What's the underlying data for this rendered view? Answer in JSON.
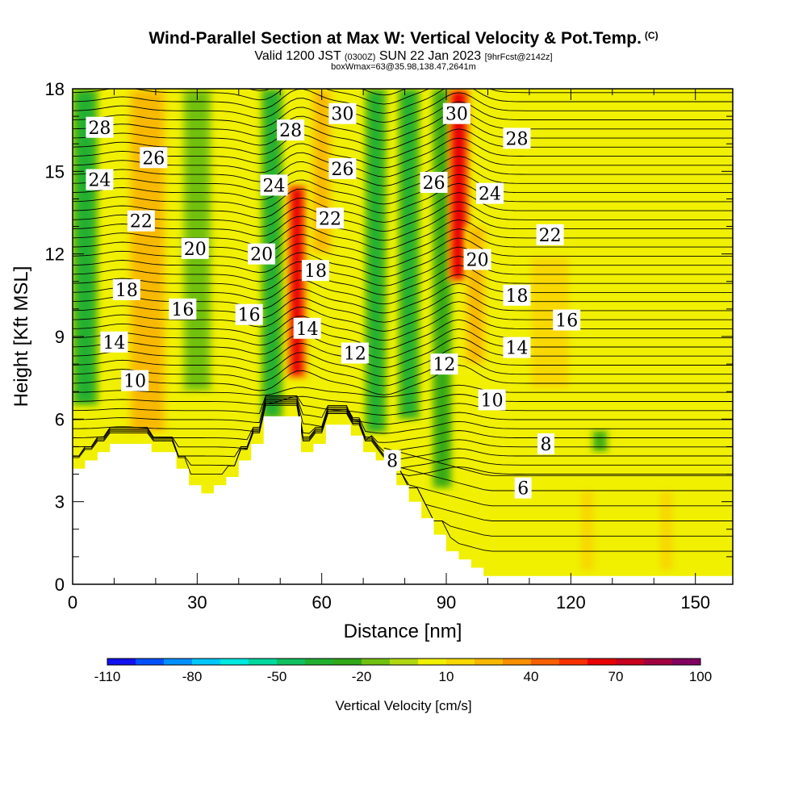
{
  "header": {
    "title": "Wind-Parallel Section at Max W: Vertical Velocity & Pot.Temp.",
    "copyright": "(C)",
    "valid_prefix": "Valid 1200 JST",
    "valid_utc": "(0300Z)",
    "valid_date": "SUN 22 Jan 2023",
    "forecast": "[9hrFcst@2142z]",
    "box_info": "boxWmax=63@35.98,138.47,2641m"
  },
  "chart_data": {
    "type": "heatmap",
    "xlabel": "Distance [nm]",
    "ylabel": "Height [Kft MSL]",
    "xlim": [
      0,
      159
    ],
    "ylim": [
      0,
      18
    ],
    "x_ticks": [
      0,
      30,
      60,
      90,
      120,
      150
    ],
    "y_ticks": [
      0,
      3,
      6,
      9,
      12,
      15,
      18
    ],
    "colorbar": {
      "label": "Vertical Velocity [cm/s]",
      "range": [
        -110,
        100
      ],
      "step": 10,
      "tick_labels": [
        -110,
        -80,
        -50,
        -20,
        10,
        40,
        70,
        100
      ],
      "colors": [
        "#1010f0",
        "#0050ff",
        "#0090ff",
        "#00c8ff",
        "#00e8e0",
        "#00d8a0",
        "#10c060",
        "#20b030",
        "#30a818",
        "#70c010",
        "#b0d810",
        "#f0f000",
        "#f8d800",
        "#f8b800",
        "#f89000",
        "#f86000",
        "#f83000",
        "#e80000",
        "#c80020",
        "#a00040",
        "#800060"
      ]
    },
    "theta_contour_labels": [
      {
        "value": 28,
        "x": 6.5,
        "y": 16.6
      },
      {
        "value": 26,
        "x": 19.5,
        "y": 15.5
      },
      {
        "value": 24,
        "x": 6.5,
        "y": 14.7
      },
      {
        "value": 22,
        "x": 16.5,
        "y": 13.2
      },
      {
        "value": 20,
        "x": 29.5,
        "y": 12.2
      },
      {
        "value": 18,
        "x": 13,
        "y": 10.7
      },
      {
        "value": 16,
        "x": 26.5,
        "y": 10.0
      },
      {
        "value": 14,
        "x": 10,
        "y": 8.8
      },
      {
        "value": 10,
        "x": 15,
        "y": 7.4
      },
      {
        "value": 28,
        "x": 52.5,
        "y": 16.5
      },
      {
        "value": 24,
        "x": 48.5,
        "y": 14.5
      },
      {
        "value": 20,
        "x": 45.5,
        "y": 12.0
      },
      {
        "value": 16,
        "x": 42.5,
        "y": 9.8
      },
      {
        "value": 30,
        "x": 65,
        "y": 17.1
      },
      {
        "value": 26,
        "x": 65,
        "y": 15.1
      },
      {
        "value": 22,
        "x": 62,
        "y": 13.3
      },
      {
        "value": 18,
        "x": 58.5,
        "y": 11.4
      },
      {
        "value": 14,
        "x": 56.5,
        "y": 9.3
      },
      {
        "value": 12,
        "x": 68,
        "y": 8.4
      },
      {
        "value": 8,
        "x": 77,
        "y": 4.5
      },
      {
        "value": 30,
        "x": 92.5,
        "y": 17.1
      },
      {
        "value": 26,
        "x": 87,
        "y": 14.6
      },
      {
        "value": 24,
        "x": 100.5,
        "y": 14.2
      },
      {
        "value": 20,
        "x": 97.5,
        "y": 11.8
      },
      {
        "value": 12,
        "x": 89.5,
        "y": 8.0
      },
      {
        "value": 10,
        "x": 101,
        "y": 6.7
      },
      {
        "value": 28,
        "x": 107,
        "y": 16.2
      },
      {
        "value": 22,
        "x": 115,
        "y": 12.7
      },
      {
        "value": 18,
        "x": 107,
        "y": 10.5
      },
      {
        "value": 16,
        "x": 119,
        "y": 9.6
      },
      {
        "value": 14,
        "x": 107,
        "y": 8.6
      },
      {
        "value": 8,
        "x": 114,
        "y": 5.1
      },
      {
        "value": 6,
        "x": 108.5,
        "y": 3.5
      }
    ],
    "terrain_profile": [
      [
        0,
        4.2
      ],
      [
        3,
        4.2
      ],
      [
        3,
        4.5
      ],
      [
        6,
        4.5
      ],
      [
        6,
        4.8
      ],
      [
        9,
        4.8
      ],
      [
        9,
        5.1
      ],
      [
        19,
        5.1
      ],
      [
        19,
        4.8
      ],
      [
        25,
        4.8
      ],
      [
        25,
        4.2
      ],
      [
        28,
        4.2
      ],
      [
        28,
        3.6
      ],
      [
        31,
        3.6
      ],
      [
        31,
        3.3
      ],
      [
        34,
        3.3
      ],
      [
        34,
        3.6
      ],
      [
        37,
        3.6
      ],
      [
        37,
        3.9
      ],
      [
        40,
        3.9
      ],
      [
        40,
        4.5
      ],
      [
        43,
        4.5
      ],
      [
        43,
        5.1
      ],
      [
        46,
        5.1
      ],
      [
        46,
        6.1
      ],
      [
        55,
        6.1
      ],
      [
        55,
        4.8
      ],
      [
        58,
        4.8
      ],
      [
        58,
        5.1
      ],
      [
        61,
        5.1
      ],
      [
        61,
        5.8
      ],
      [
        67,
        5.8
      ],
      [
        67,
        5.4
      ],
      [
        70,
        5.4
      ],
      [
        70,
        4.8
      ],
      [
        73,
        4.8
      ],
      [
        73,
        4.5
      ],
      [
        75,
        4.5
      ],
      [
        75,
        4.2
      ],
      [
        78,
        4.2
      ],
      [
        78,
        3.6
      ],
      [
        81,
        3.6
      ],
      [
        81,
        3.0
      ],
      [
        84,
        3.0
      ],
      [
        84,
        2.4
      ],
      [
        87,
        2.4
      ],
      [
        87,
        1.8
      ],
      [
        90,
        1.8
      ],
      [
        90,
        1.2
      ],
      [
        93,
        1.2
      ],
      [
        93,
        0.9
      ],
      [
        96,
        0.9
      ],
      [
        96,
        0.6
      ],
      [
        99,
        0.6
      ],
      [
        99,
        0.3
      ],
      [
        159,
        0.3
      ]
    ],
    "w_regions": [
      {
        "center_x": 3,
        "width": 4,
        "y0": 6.5,
        "y1": 18,
        "value": -35
      },
      {
        "center_x": 18,
        "width": 7,
        "y0": 5.5,
        "y1": 18,
        "value": 20
      },
      {
        "center_x": 30,
        "width": 5,
        "y0": 7,
        "y1": 18,
        "value": -15
      },
      {
        "center_x": 48,
        "width": 3,
        "y0": 6,
        "y1": 18,
        "value": -40
      },
      {
        "center_x": 54,
        "width": 2.5,
        "y0": 7.5,
        "y1": 14.5,
        "value": 60
      },
      {
        "center_x": 60,
        "width": 3,
        "y0": 12,
        "y1": 18,
        "value": 25
      },
      {
        "center_x": 73,
        "width": 3,
        "y0": 5.5,
        "y1": 18,
        "value": -40
      },
      {
        "center_x": 81,
        "width": 3,
        "y0": 6,
        "y1": 18,
        "value": -35
      },
      {
        "center_x": 89,
        "width": 2.5,
        "y0": 3.5,
        "y1": 18,
        "value": -30
      },
      {
        "center_x": 93,
        "width": 3,
        "y0": 11,
        "y1": 18,
        "value": 60
      },
      {
        "center_x": 97,
        "width": 3,
        "y0": 8,
        "y1": 13,
        "value": 25
      },
      {
        "center_x": 115,
        "width": 9,
        "y0": 7,
        "y1": 12,
        "value": 15
      },
      {
        "center_x": 127,
        "width": 1.5,
        "y0": 4.8,
        "y1": 5.6,
        "value": -25
      },
      {
        "center_x": 124,
        "width": 3,
        "y0": 0.4,
        "y1": 3.5,
        "value": 18
      },
      {
        "center_x": 143,
        "width": 3,
        "y0": 0.4,
        "y1": 3.5,
        "value": 15
      }
    ]
  }
}
